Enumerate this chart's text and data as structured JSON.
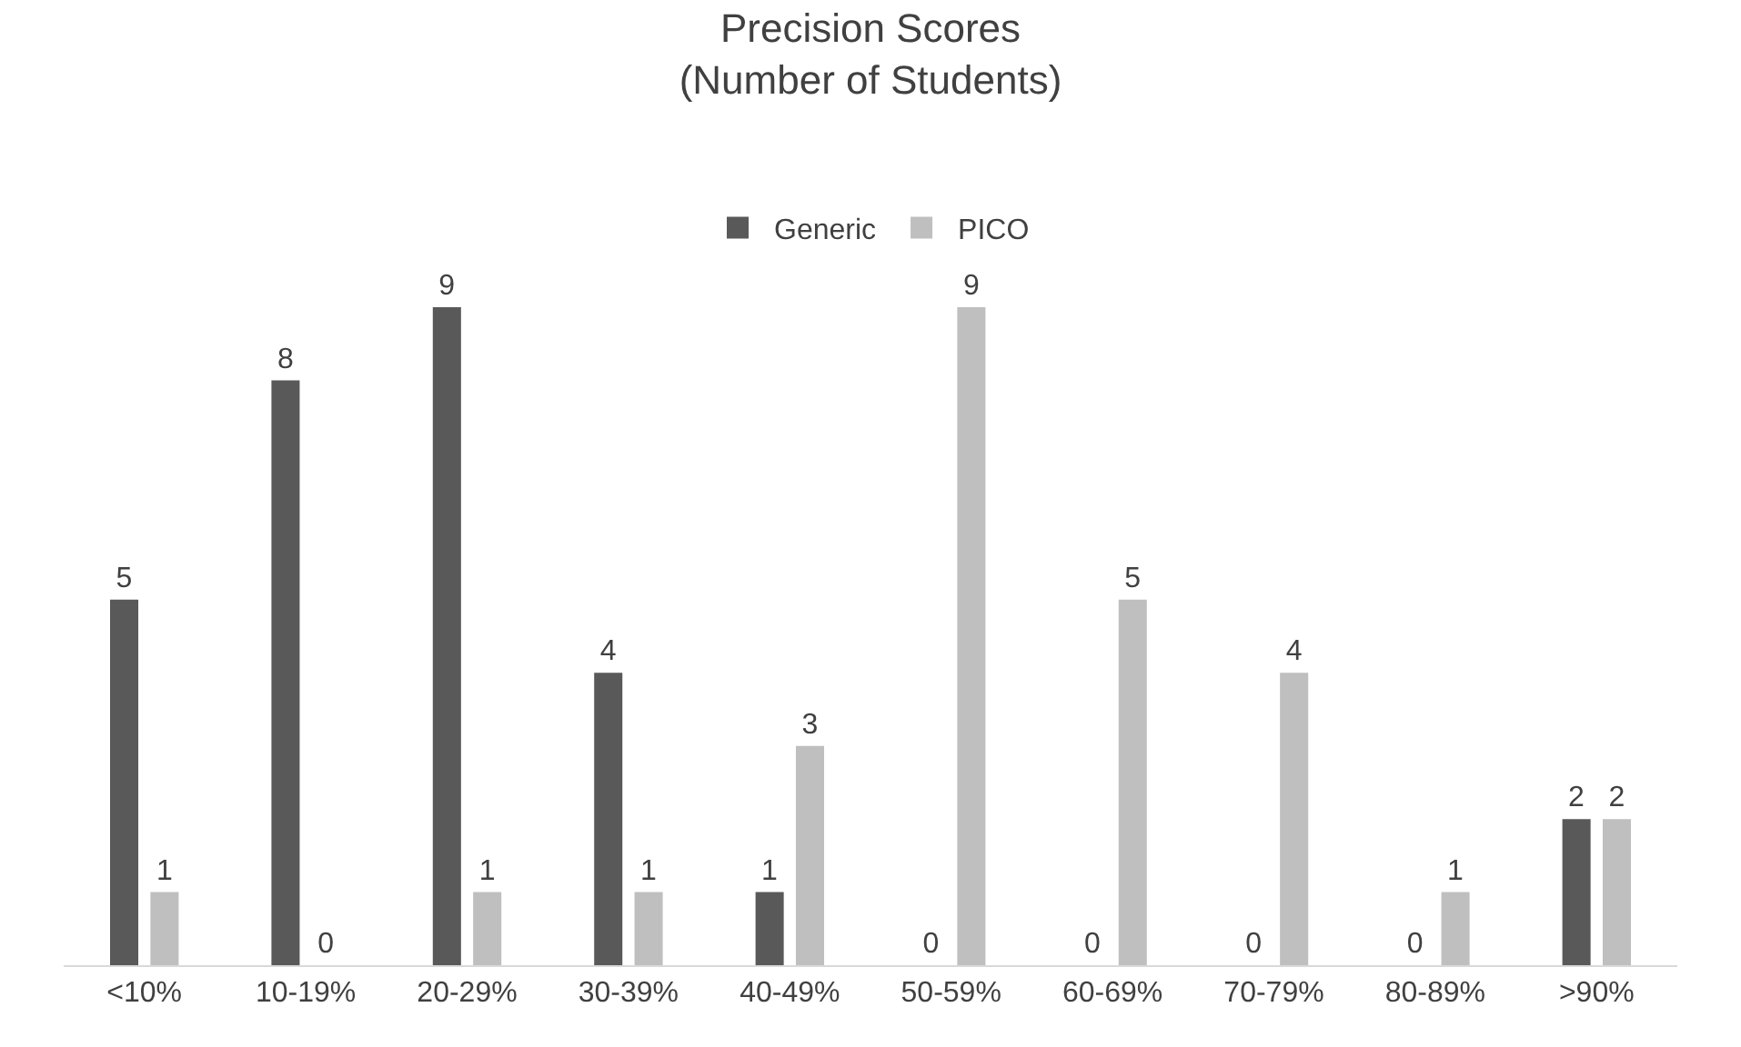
{
  "chart_data": {
    "type": "bar",
    "title": "Precision Scores\n(Number of Students)",
    "categories": [
      "<10%",
      "10-19%",
      "20-29%",
      "30-39%",
      "40-49%",
      "50-59%",
      "60-69%",
      "70-79%",
      "80-89%",
      ">90%"
    ],
    "series": [
      {
        "name": "Generic",
        "color": "#595959",
        "values": [
          5,
          8,
          9,
          4,
          1,
          0,
          0,
          0,
          0,
          2
        ]
      },
      {
        "name": "PICO",
        "color": "#bfbfbf",
        "values": [
          1,
          0,
          1,
          1,
          3,
          9,
          5,
          4,
          1,
          2
        ]
      }
    ],
    "data_labels": true,
    "legend": "top"
  }
}
